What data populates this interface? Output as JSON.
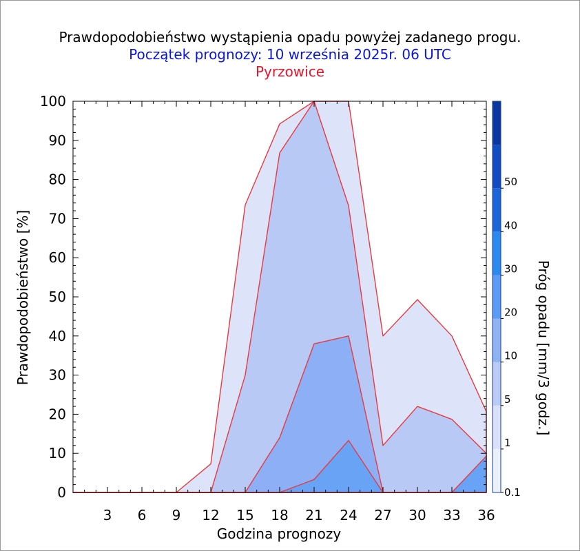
{
  "chart_data": {
    "type": "area",
    "title": "Prawdopodobieństwo wystąpienia opadu powyżej zadanego progu.",
    "subtitle": "Początek prognozy: 10 września 2025r. 06 UTC",
    "location": "Pyrzowice",
    "xlabel": "Godzina prognozy",
    "ylabel": "Prawdopodobieństwo [%]",
    "colorbar_label": "Próg opadu [mm/3 godz.]",
    "xlim": [
      0,
      36
    ],
    "ylim": [
      0,
      100
    ],
    "x_ticks": [
      "3",
      "6",
      "9",
      "12",
      "15",
      "18",
      "21",
      "24",
      "27",
      "30",
      "33",
      "36"
    ],
    "y_ticks": [
      "0",
      "10",
      "20",
      "30",
      "40",
      "50",
      "60",
      "70",
      "80",
      "90",
      "100"
    ],
    "x": [
      0,
      3,
      6,
      9,
      12,
      15,
      18,
      21,
      24,
      27,
      30,
      33,
      36
    ],
    "series": [
      {
        "name": "0.1",
        "color": "#dde3f9",
        "values": [
          0,
          0,
          0,
          0,
          7.3,
          73.5,
          94.2,
          100,
          100,
          40,
          49.3,
          40,
          20.7
        ]
      },
      {
        "name": "1",
        "color": "#b8c9f5",
        "values": [
          0,
          0,
          0,
          0,
          0,
          30,
          86.8,
          100,
          73.3,
          12,
          22,
          18.7,
          10
        ]
      },
      {
        "name": "5",
        "color": "#8caff5",
        "values": [
          0,
          0,
          0,
          0,
          0,
          0,
          14,
          38,
          40,
          0,
          0,
          0,
          0
        ]
      },
      {
        "name": "10",
        "color": "#68a3f5",
        "values": [
          0,
          0,
          0,
          0,
          0,
          0,
          0,
          3.3,
          13.3,
          0,
          0,
          0,
          9.3
        ]
      }
    ],
    "colorbar": {
      "levels": [
        "0.1",
        "1",
        "5",
        "10",
        "20",
        "30",
        "40",
        "50"
      ],
      "colors": [
        "#eceffc",
        "#d9e0fa",
        "#b9caf5",
        "#8fb2f3",
        "#5c9bf3",
        "#2b8af0",
        "#1a66d8",
        "#124cc0",
        "#0a37a0"
      ]
    },
    "line_color": "#e8393e",
    "grid": false
  }
}
